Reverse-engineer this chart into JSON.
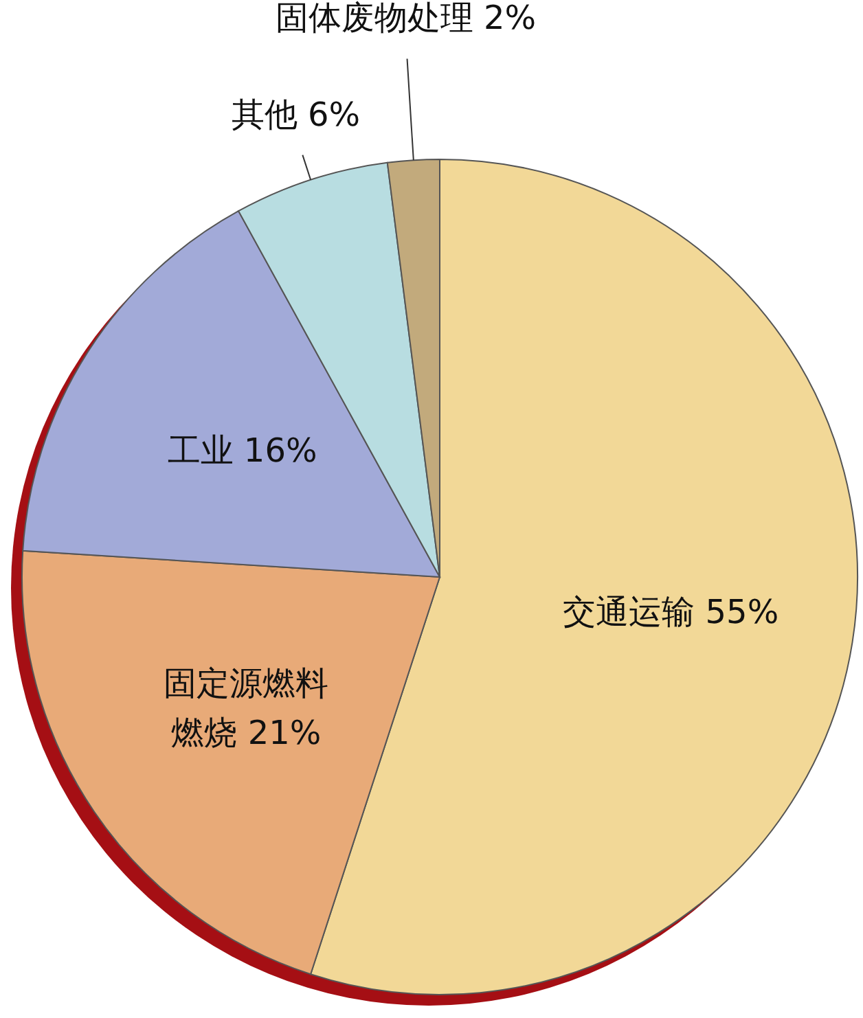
{
  "chart_data": {
    "type": "pie",
    "value_labels": [
      "55%",
      "21%",
      "16%",
      "6%",
      "2%"
    ],
    "categories": [
      "交通运输",
      "固定源燃料燃烧",
      "工业",
      "其他",
      "固体废物处理"
    ],
    "values": [
      55,
      21,
      16,
      6,
      2
    ],
    "colors": [
      "#f2d897",
      "#e8aa78",
      "#a2aad8",
      "#b8dde1",
      "#c2aa7c"
    ]
  }
}
